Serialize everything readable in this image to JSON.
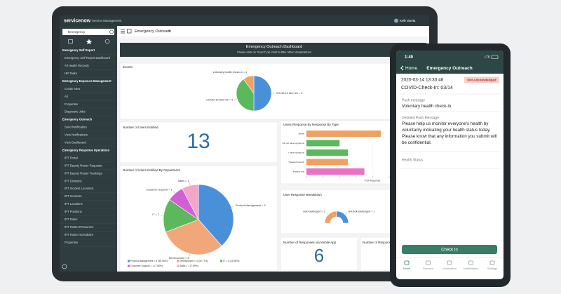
{
  "app": {
    "brand": "servicenow",
    "module": "Service Management",
    "user": "Kelli Varela",
    "filter": "Emergency",
    "tab": "Emergency Outreach"
  },
  "nav": [
    {
      "label": "Emergency Self Report",
      "section": true
    },
    {
      "label": "Emergency Self Report Dashboard",
      "section": false
    },
    {
      "label": "All Health Records",
      "section": false
    },
    {
      "label": "HR Tasks",
      "section": false
    },
    {
      "label": "Emergency Exposure Management",
      "section": true
    },
    {
      "label": "Create New",
      "section": false
    },
    {
      "label": "All",
      "section": false
    },
    {
      "label": "Properties",
      "section": false
    },
    {
      "label": "Diagnostic Jobs",
      "section": false
    },
    {
      "label": "Emergency Outreach",
      "section": true
    },
    {
      "label": "Send Notification",
      "section": false
    },
    {
      "label": "View Notifications",
      "section": false
    },
    {
      "label": "View Dashboard",
      "section": false
    },
    {
      "label": "Emergency Response Operations",
      "section": true
    },
    {
      "label": "IRT Portal",
      "section": false
    },
    {
      "label": "IRT Deputy Roster Requests",
      "section": false
    },
    {
      "label": "IRT Deputy Roster Trackings",
      "section": false
    },
    {
      "label": "IRT Divisions",
      "section": false
    },
    {
      "label": "IRT Incident Locations",
      "section": false
    },
    {
      "label": "IRT Incidents",
      "section": false
    },
    {
      "label": "IRT Locations",
      "section": false
    },
    {
      "label": "IRT Positions",
      "section": false
    },
    {
      "label": "IRT Roles",
      "section": false
    },
    {
      "label": "IRT Roster Resources",
      "section": false
    },
    {
      "label": "IRT Roster Schedules",
      "section": false
    },
    {
      "label": "Properties",
      "section": false
    }
  ],
  "dashboard": {
    "title": "Emergency Outreach Dashboard",
    "subtitle": "Please click on \"Event\" pie chart to filter other visualizations",
    "users_notified": {
      "title": "Number of Users Notified",
      "value": 13
    },
    "mobile": {
      "title": "Number of Responses via Mobile App",
      "value": 6
    },
    "responses": {
      "title": "Number of Responses"
    }
  },
  "chart_data": [
    {
      "type": "pie",
      "title": "Events",
      "values": [
        5,
        4,
        1
      ],
      "value_labels": [
        "COVID-19 Alert #1 = 5",
        "COVID-19 Alert #2 = 4",
        "Voluntary health check-in = 1"
      ],
      "colors": [
        "#4a90d9",
        "#5cb85c",
        "#f0a060"
      ]
    },
    {
      "type": "pie",
      "title": "Number of Users Notified By Department",
      "values": [
        5,
        4,
        2,
        1,
        1
      ],
      "value_labels": [
        "Product Management = 5",
        "Development = 4",
        "IT = 2",
        "Customer Support = 1",
        "Sales = 1"
      ],
      "legend": [
        "Product Management = 5 (38.46%)",
        "Development = 4 (30.77%)",
        "IT = 2 (15.38%)",
        "Customer Support = 1 (7.69%)",
        "Sales = 1 (7.69%)"
      ],
      "colors": [
        "#4a90d9",
        "#f2a77a",
        "#5cb85c",
        "#d35fd6",
        "#f3a6c8"
      ]
    },
    {
      "type": "hbar",
      "title": "Users Response By Response By Type",
      "categories": [
        "Briefly",
        "I do not have symptoms",
        "I have symptoms",
        "Traveled recently",
        "Positive test"
      ],
      "values": [
        9,
        4,
        5,
        5,
        7
      ],
      "colors": [
        "#f0a060",
        "#5cb85c",
        "#5cb85c",
        "#f0a060",
        "#e872c4"
      ],
      "xlim": [
        0,
        10
      ],
      "xticks": [
        0,
        2,
        4,
        6,
        8,
        10
      ],
      "xlabel": "# Of Response"
    },
    {
      "type": "donut",
      "title": "User Response Breakdown",
      "semicircle": true,
      "values": [
        1,
        1
      ],
      "value_labels": [
        "Acknowledged = 1",
        "Not Acknowledged = 1"
      ],
      "colors": [
        "#f0a060",
        "#4a90d9"
      ]
    }
  ],
  "phone": {
    "time": "1:49",
    "network": "LTE",
    "back": "Home",
    "title": "Emergency Outreach",
    "timestamp": "2020-03-14 13:30:46",
    "status": "Not Acknowledged",
    "record": "COVID-Check-In: 03/14",
    "fields": [
      {
        "label": "Push message",
        "value": "Voluntary health check-in"
      },
      {
        "label": "Detailed Push Message",
        "value": "Please help us monitor everyone's health by voluntarily indicating your health status today. Please know that any information you submit will be confidential."
      },
      {
        "label": "Health Status"
      }
    ],
    "button": "Check In",
    "tabs": [
      "Home",
      "Services",
      "Information",
      "Notifications",
      "Settings"
    ]
  }
}
